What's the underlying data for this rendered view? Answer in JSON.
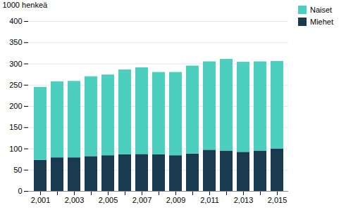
{
  "chart_data": {
    "type": "bar",
    "stacked": true,
    "ylabel": "1000 henkeä",
    "categories": [
      2001,
      null,
      2003,
      null,
      2005,
      null,
      2007,
      null,
      2009,
      null,
      2011,
      null,
      2013,
      null,
      2015
    ],
    "series": [
      {
        "name": "Miehet",
        "color": "#1A3A52",
        "values": [
          73,
          79,
          79,
          82,
          84,
          86,
          87,
          86,
          84,
          88,
          97,
          95,
          92,
          95,
          100
        ]
      },
      {
        "name": "Naiset",
        "color": "#4DCFBF",
        "values": [
          172,
          179,
          180,
          188,
          190,
          200,
          204,
          194,
          196,
          207,
          208,
          216,
          212,
          210,
          206
        ]
      }
    ],
    "ylim": [
      0,
      400
    ],
    "yticks": [
      0,
      50,
      100,
      150,
      200,
      250,
      300,
      350,
      400
    ],
    "grid": true,
    "legend": "upper right"
  }
}
